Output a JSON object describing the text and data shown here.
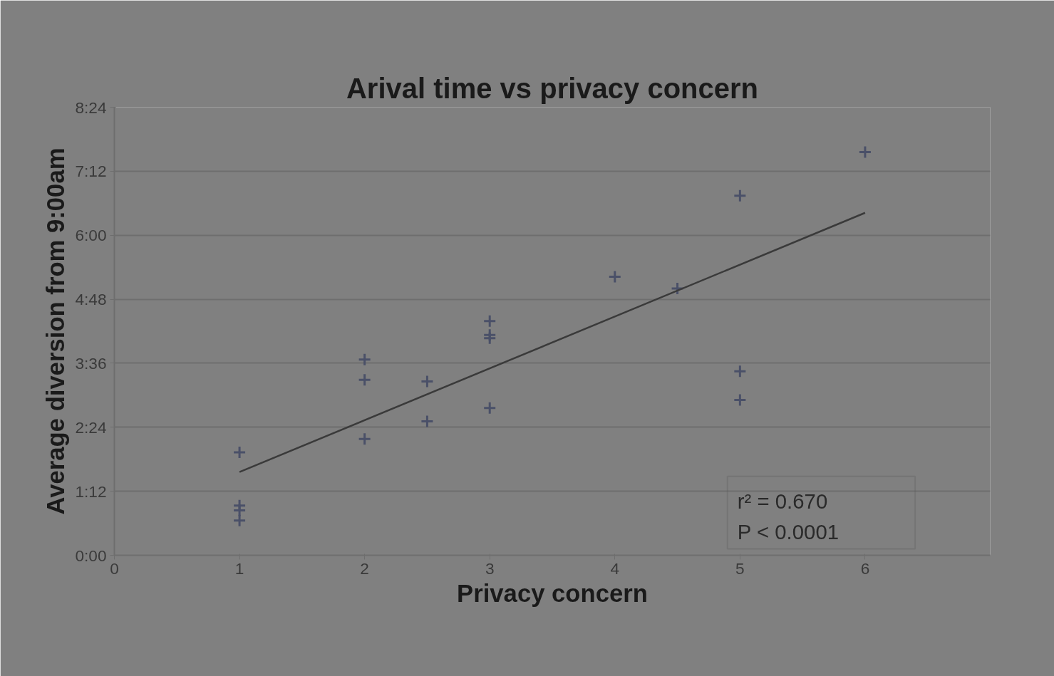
{
  "chart_data": {
    "type": "scatter",
    "title": "Arival time vs privacy concern",
    "xlabel": "Privacy concern",
    "ylabel": "Average diversion from 9:00am",
    "series": [
      {
        "color": "#4a5068",
        "marker": "cross",
        "x": [
          1,
          1,
          1,
          1,
          2,
          2,
          2,
          2.5,
          2.5,
          3,
          3,
          3,
          3,
          4,
          4.5,
          5,
          5,
          5,
          6
        ],
        "values": [
          1.93,
          0.93,
          0.84,
          0.65,
          3.67,
          3.29,
          2.18,
          3.26,
          2.51,
          4.39,
          4.13,
          4.07,
          2.76,
          5.22,
          5.0,
          6.74,
          3.45,
          2.91,
          7.56
        ]
      },
      {
        "type": "line",
        "color": "#3a3a3a",
        "marker": "none",
        "x": [
          1,
          6
        ],
        "values": [
          1.56,
          6.42
        ]
      }
    ],
    "xlim": [
      0,
      7
    ],
    "xticks": [
      0,
      1,
      2,
      3,
      4,
      5,
      6
    ],
    "ylim": [
      0,
      8.4
    ],
    "yticks": [
      {
        "value": 0,
        "label": "0:00"
      },
      {
        "value": 1.2,
        "label": "1:12"
      },
      {
        "value": 2.4,
        "label": "2:24"
      },
      {
        "value": 3.6,
        "label": "3:36"
      },
      {
        "value": 4.8,
        "label": "4:48"
      },
      {
        "value": 6.0,
        "label": "6:00"
      },
      {
        "value": 7.2,
        "label": "7:12"
      },
      {
        "value": 8.4,
        "label": "8:24"
      }
    ],
    "grid": "y",
    "annotations": [
      "r² = 0.670",
      "P < 0.0001"
    ]
  }
}
